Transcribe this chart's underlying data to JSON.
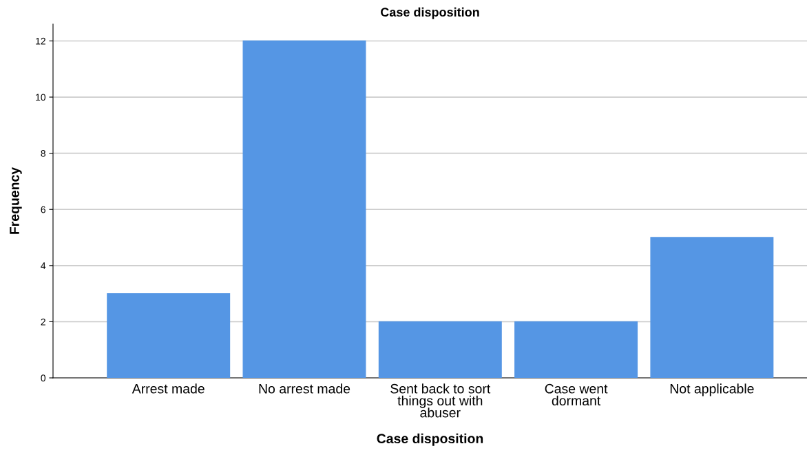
{
  "chart_data": {
    "type": "bar",
    "title": "Case disposition",
    "xlabel": "Case disposition",
    "ylabel": "Frequency",
    "categories": [
      "Arrest made",
      "No arrest made",
      "Sent back to sort\nthings out with\nabuser",
      "Case went\ndormant",
      "Not applicable"
    ],
    "values": [
      3,
      12,
      2,
      2,
      5
    ],
    "color": "#5596e4",
    "ylim": [
      0,
      12.6
    ],
    "yticks": [
      0,
      2,
      4,
      6,
      8,
      10,
      12
    ],
    "grid": "y",
    "legend": false
  }
}
